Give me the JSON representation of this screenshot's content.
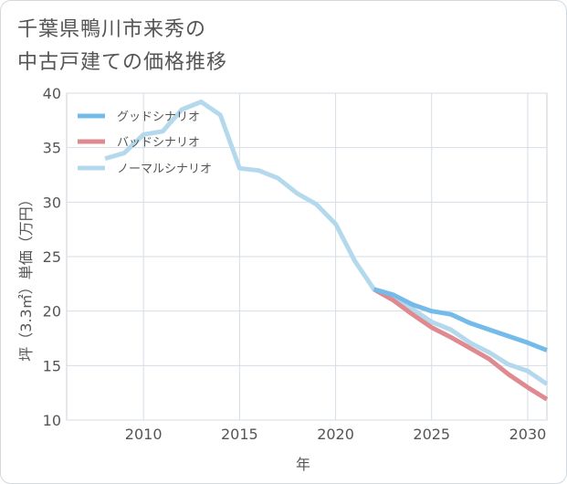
{
  "title_line1": "千葉県鴨川市来秀の",
  "title_line2": "中古戸建ての価格推移",
  "chart_data": {
    "type": "line",
    "xlabel": "年",
    "ylabel": "坪（3.3㎡）単価（万円）",
    "xlim": [
      2006,
      2031
    ],
    "ylim": [
      10,
      40
    ],
    "xticks": [
      2010,
      2015,
      2020,
      2025,
      2030
    ],
    "yticks": [
      10,
      15,
      20,
      25,
      30,
      35,
      40
    ],
    "grid": true,
    "legend_position": "top-left",
    "series": [
      {
        "name": "グッドシナリオ",
        "color": "#74bbea",
        "x": [
          2022,
          2023,
          2024,
          2025,
          2026,
          2027,
          2028,
          2029,
          2030,
          2031
        ],
        "y": [
          22.0,
          21.5,
          20.6,
          20.0,
          19.7,
          18.9,
          18.3,
          17.7,
          17.1,
          16.4
        ]
      },
      {
        "name": "バッドシナリオ",
        "color": "#de8a90",
        "x": [
          2022,
          2023,
          2024,
          2025,
          2026,
          2027,
          2028,
          2029,
          2030,
          2031
        ],
        "y": [
          22.0,
          21.0,
          19.7,
          18.5,
          17.6,
          16.6,
          15.6,
          14.2,
          13.0,
          11.9
        ]
      },
      {
        "name": "ノーマルシナリオ",
        "color": "#b5d9ec",
        "x": [
          2008,
          2009,
          2010,
          2011,
          2012,
          2013,
          2014,
          2015,
          2016,
          2017,
          2018,
          2019,
          2020,
          2021,
          2022,
          2023,
          2024,
          2025,
          2026,
          2027,
          2028,
          2029,
          2030,
          2031
        ],
        "y": [
          34.0,
          34.5,
          36.2,
          36.5,
          38.5,
          39.2,
          38.0,
          33.1,
          32.9,
          32.2,
          30.8,
          29.8,
          28.0,
          24.6,
          22.0,
          21.0,
          20.2,
          19.0,
          18.3,
          17.1,
          16.2,
          15.1,
          14.5,
          13.3
        ]
      }
    ]
  }
}
